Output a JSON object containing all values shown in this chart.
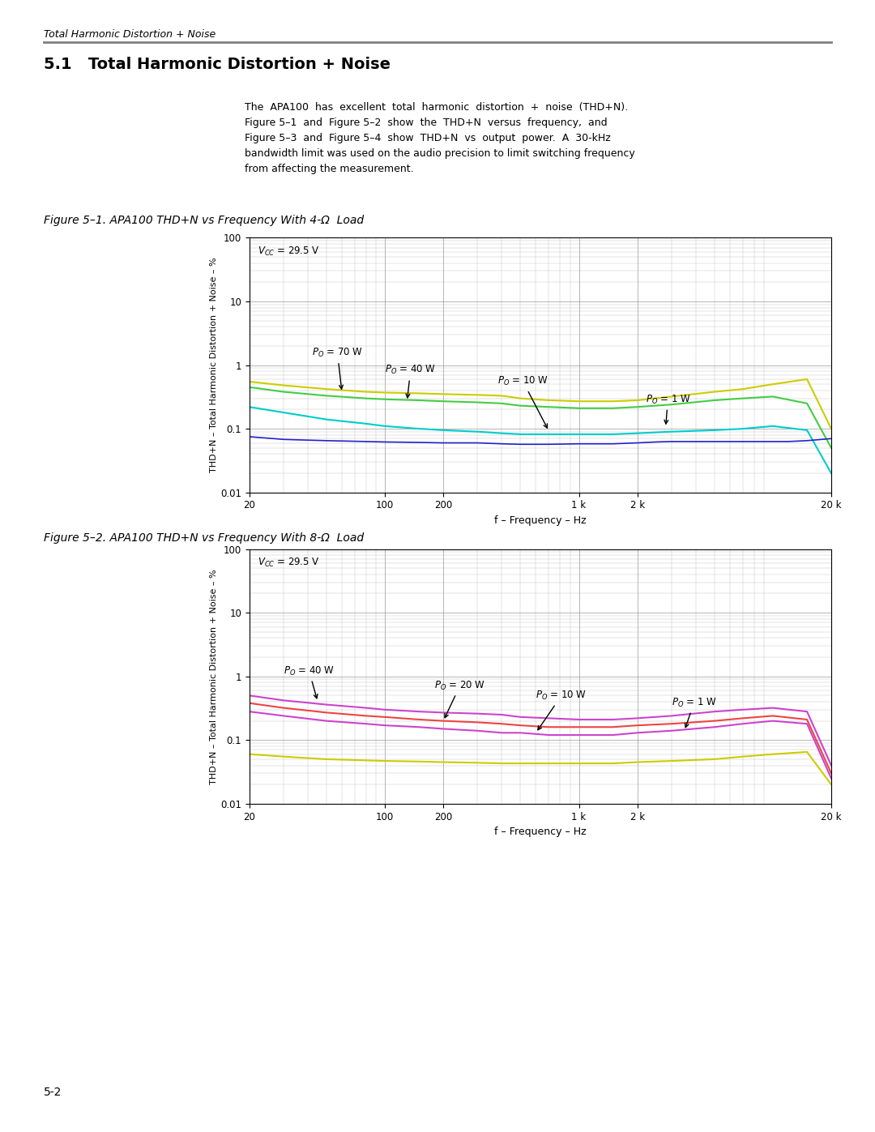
{
  "page_header": "Total Harmonic Distortion + Noise",
  "section_title": "5.1   Total Harmonic Distortion + Noise",
  "body_text": "The  APA100  has  excellent  total  harmonic  distortion  +  noise  (THD+N).\nFigure 5–1  and  Figure 5–2  show  the  THD+N  versus  frequency,  and\nFigure 5–3  and  Figure 5–4  show  THD+N  vs  output  power.  A  30-kHz\nbandwidth limit was used on the audio precision to limit switching frequency\nfrom affecting the measurement.",
  "fig1_caption": "Figure 5–1. APA100 THD+N vs Frequency With 4-Ω  Load",
  "fig2_caption": "Figure 5–2. APA100 THD+N vs Frequency With 8-Ω  Load",
  "xlabel": "f – Frequency – Hz",
  "ylabel": "THD+N – Total Harmonic Distortion + Noise – %",
  "xlim": [
    20,
    20000
  ],
  "ylim": [
    0.01,
    100
  ],
  "page_number": "5-2",
  "fig1_curves": [
    {
      "label": "P_O = 70 W",
      "color": "#cccc00",
      "lw": 1.5,
      "points": [
        [
          20,
          0.55
        ],
        [
          30,
          0.48
        ],
        [
          50,
          0.42
        ],
        [
          80,
          0.38
        ],
        [
          100,
          0.37
        ],
        [
          150,
          0.36
        ],
        [
          200,
          0.35
        ],
        [
          300,
          0.34
        ],
        [
          400,
          0.33
        ],
        [
          500,
          0.3
        ],
        [
          700,
          0.28
        ],
        [
          1000,
          0.27
        ],
        [
          1500,
          0.27
        ],
        [
          2000,
          0.28
        ],
        [
          3000,
          0.32
        ],
        [
          5000,
          0.38
        ],
        [
          7000,
          0.42
        ],
        [
          10000,
          0.5
        ],
        [
          15000,
          0.6
        ],
        [
          20000,
          0.1
        ]
      ]
    },
    {
      "label": "P_O = 40 W",
      "color": "#44cc44",
      "lw": 1.5,
      "points": [
        [
          20,
          0.45
        ],
        [
          30,
          0.38
        ],
        [
          50,
          0.33
        ],
        [
          80,
          0.3
        ],
        [
          100,
          0.29
        ],
        [
          150,
          0.28
        ],
        [
          200,
          0.27
        ],
        [
          300,
          0.26
        ],
        [
          400,
          0.25
        ],
        [
          500,
          0.23
        ],
        [
          700,
          0.22
        ],
        [
          1000,
          0.21
        ],
        [
          1500,
          0.21
        ],
        [
          2000,
          0.22
        ],
        [
          3000,
          0.24
        ],
        [
          5000,
          0.28
        ],
        [
          7000,
          0.3
        ],
        [
          10000,
          0.32
        ],
        [
          15000,
          0.25
        ],
        [
          20000,
          0.05
        ]
      ]
    },
    {
      "label": "P_O = 10 W",
      "color": "#00cccc",
      "lw": 1.5,
      "points": [
        [
          20,
          0.22
        ],
        [
          30,
          0.18
        ],
        [
          50,
          0.14
        ],
        [
          80,
          0.12
        ],
        [
          100,
          0.11
        ],
        [
          150,
          0.1
        ],
        [
          200,
          0.095
        ],
        [
          300,
          0.09
        ],
        [
          400,
          0.085
        ],
        [
          500,
          0.082
        ],
        [
          700,
          0.082
        ],
        [
          1000,
          0.082
        ],
        [
          1500,
          0.082
        ],
        [
          2000,
          0.085
        ],
        [
          3000,
          0.09
        ],
        [
          5000,
          0.095
        ],
        [
          7000,
          0.1
        ],
        [
          10000,
          0.11
        ],
        [
          15000,
          0.095
        ],
        [
          20000,
          0.02
        ]
      ]
    },
    {
      "label": "P_O = 1 W",
      "color": "#2222cc",
      "lw": 1.2,
      "points": [
        [
          20,
          0.075
        ],
        [
          30,
          0.068
        ],
        [
          50,
          0.065
        ],
        [
          80,
          0.063
        ],
        [
          100,
          0.062
        ],
        [
          150,
          0.061
        ],
        [
          200,
          0.06
        ],
        [
          300,
          0.06
        ],
        [
          400,
          0.058
        ],
        [
          500,
          0.057
        ],
        [
          700,
          0.057
        ],
        [
          1000,
          0.058
        ],
        [
          1500,
          0.058
        ],
        [
          2000,
          0.06
        ],
        [
          2500,
          0.062
        ],
        [
          3000,
          0.063
        ],
        [
          4000,
          0.063
        ],
        [
          5000,
          0.063
        ],
        [
          6000,
          0.063
        ],
        [
          7000,
          0.063
        ],
        [
          8000,
          0.063
        ],
        [
          9000,
          0.063
        ],
        [
          10000,
          0.063
        ],
        [
          12000,
          0.063
        ],
        [
          15000,
          0.065
        ],
        [
          20000,
          0.07
        ]
      ]
    }
  ],
  "fig2_curves": [
    {
      "label": "P_O = 40 W",
      "color": "#cc44cc",
      "lw": 1.5,
      "points": [
        [
          20,
          0.5
        ],
        [
          30,
          0.42
        ],
        [
          50,
          0.36
        ],
        [
          80,
          0.32
        ],
        [
          100,
          0.3
        ],
        [
          150,
          0.28
        ],
        [
          200,
          0.27
        ],
        [
          300,
          0.26
        ],
        [
          400,
          0.25
        ],
        [
          500,
          0.23
        ],
        [
          700,
          0.22
        ],
        [
          1000,
          0.21
        ],
        [
          1500,
          0.21
        ],
        [
          2000,
          0.22
        ],
        [
          3000,
          0.24
        ],
        [
          5000,
          0.28
        ],
        [
          7000,
          0.3
        ],
        [
          10000,
          0.32
        ],
        [
          15000,
          0.28
        ],
        [
          20000,
          0.04
        ]
      ]
    },
    {
      "label": "P_O = 20 W",
      "color": "#ee4444",
      "lw": 1.5,
      "points": [
        [
          20,
          0.38
        ],
        [
          30,
          0.32
        ],
        [
          50,
          0.27
        ],
        [
          80,
          0.24
        ],
        [
          100,
          0.23
        ],
        [
          150,
          0.21
        ],
        [
          200,
          0.2
        ],
        [
          300,
          0.19
        ],
        [
          400,
          0.18
        ],
        [
          500,
          0.17
        ],
        [
          700,
          0.16
        ],
        [
          1000,
          0.16
        ],
        [
          1500,
          0.16
        ],
        [
          2000,
          0.17
        ],
        [
          3000,
          0.18
        ],
        [
          5000,
          0.2
        ],
        [
          7000,
          0.22
        ],
        [
          10000,
          0.24
        ],
        [
          15000,
          0.21
        ],
        [
          20000,
          0.03
        ]
      ]
    },
    {
      "label": "P_O = 10 W",
      "color": "#cc44cc",
      "lw": 1.5,
      "points": [
        [
          20,
          0.28
        ],
        [
          30,
          0.24
        ],
        [
          50,
          0.2
        ],
        [
          80,
          0.18
        ],
        [
          100,
          0.17
        ],
        [
          150,
          0.16
        ],
        [
          200,
          0.15
        ],
        [
          300,
          0.14
        ],
        [
          400,
          0.13
        ],
        [
          500,
          0.13
        ],
        [
          700,
          0.12
        ],
        [
          1000,
          0.12
        ],
        [
          1500,
          0.12
        ],
        [
          2000,
          0.13
        ],
        [
          3000,
          0.14
        ],
        [
          5000,
          0.16
        ],
        [
          7000,
          0.18
        ],
        [
          10000,
          0.2
        ],
        [
          15000,
          0.18
        ],
        [
          20000,
          0.025
        ]
      ]
    },
    {
      "label": "P_O = 1 W",
      "color": "#cccc00",
      "lw": 1.5,
      "points": [
        [
          20,
          0.06
        ],
        [
          30,
          0.055
        ],
        [
          50,
          0.05
        ],
        [
          80,
          0.048
        ],
        [
          100,
          0.047
        ],
        [
          150,
          0.046
        ],
        [
          200,
          0.045
        ],
        [
          300,
          0.044
        ],
        [
          400,
          0.043
        ],
        [
          500,
          0.043
        ],
        [
          700,
          0.043
        ],
        [
          1000,
          0.043
        ],
        [
          1500,
          0.043
        ],
        [
          2000,
          0.045
        ],
        [
          3000,
          0.047
        ],
        [
          5000,
          0.05
        ],
        [
          7000,
          0.055
        ],
        [
          10000,
          0.06
        ],
        [
          15000,
          0.065
        ],
        [
          20000,
          0.02
        ]
      ]
    }
  ]
}
